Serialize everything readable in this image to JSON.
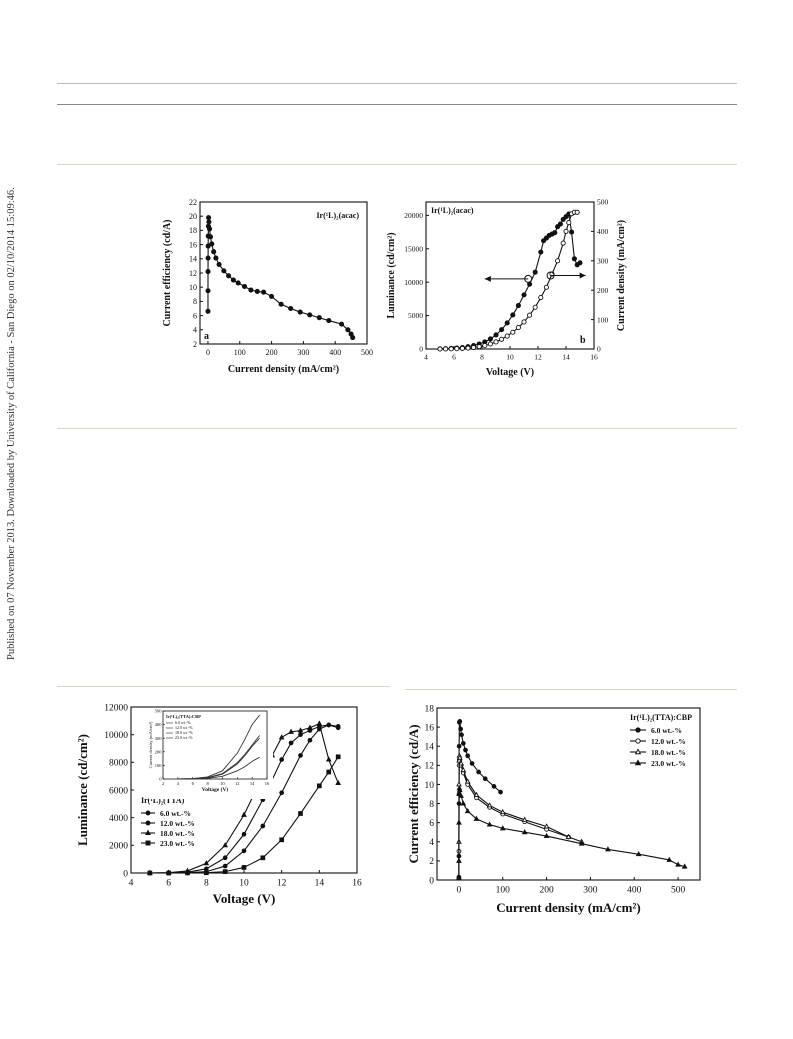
{
  "page": {
    "side_note": "Published on 07 November 2013. Downloaded by University of California - San Diego on 02/10/2014 15:09:46."
  },
  "chart_data": [
    {
      "id": "fig-a",
      "type": "line",
      "title": "",
      "annotation": "Ir(¹L)₂(acac)",
      "panel_label": "a",
      "xlabel": "Current density (mA/cm²)",
      "ylabel": "Current efficiency (cd/A)",
      "xlim": [
        -25,
        500
      ],
      "ylim": [
        2,
        22
      ],
      "xticks": [
        0,
        100,
        200,
        300,
        400,
        500
      ],
      "yticks": [
        2,
        4,
        6,
        8,
        10,
        12,
        14,
        16,
        18,
        20,
        22
      ],
      "series": [
        {
          "marker": "filled-circle",
          "x": [
            0.05,
            0.1,
            0.2,
            0.4,
            0.6,
            1,
            1.5,
            2,
            3,
            5,
            8,
            12,
            18,
            25,
            35,
            50,
            65,
            80,
            95,
            115,
            135,
            155,
            175,
            200,
            230,
            260,
            290,
            320,
            350,
            380,
            420,
            440,
            450,
            455
          ],
          "y": [
            6.6,
            9.5,
            12.2,
            14.1,
            15.8,
            17.2,
            18.6,
            19.8,
            19.2,
            18.2,
            17.1,
            16.1,
            15.0,
            14.1,
            13.2,
            12.3,
            11.6,
            11.0,
            10.6,
            10.1,
            9.6,
            9.4,
            9.3,
            8.7,
            7.6,
            7.0,
            6.5,
            6.1,
            5.7,
            5.3,
            4.8,
            4.0,
            3.4,
            2.9
          ]
        }
      ]
    },
    {
      "id": "fig-b",
      "type": "line",
      "title": "",
      "annotation": "Ir(¹L)₂(acac)",
      "panel_label": "b",
      "xlabel": "Voltage (V)",
      "ylabel": "Luminance (cd/cm²)",
      "ylabel_right": "Current density (mA/cm²)",
      "xlim": [
        4,
        16
      ],
      "ylim": [
        0,
        22000
      ],
      "ylim_right": [
        0,
        500
      ],
      "xticks": [
        4,
        6,
        8,
        10,
        12,
        14,
        16
      ],
      "yticks": [
        0,
        5000,
        10000,
        15000,
        20000
      ],
      "yticks_right": [
        0,
        100,
        200,
        300,
        400,
        500
      ],
      "series": [
        {
          "axis": "left",
          "marker": "filled-circle",
          "x": [
            5,
            5.4,
            5.8,
            6.2,
            6.6,
            7,
            7.4,
            7.8,
            8.2,
            8.6,
            9,
            9.4,
            9.8,
            10.2,
            10.6,
            11,
            11.4,
            11.8,
            12.2,
            12.4,
            12.6,
            12.8,
            13,
            13.2,
            13.4,
            13.6,
            13.8,
            14,
            14.2,
            14.4,
            14.6,
            14.8,
            15
          ],
          "y": [
            20,
            40,
            80,
            140,
            220,
            350,
            520,
            750,
            1050,
            1500,
            2100,
            2900,
            3900,
            5100,
            6500,
            8100,
            9700,
            11500,
            14500,
            16200,
            16600,
            17000,
            17200,
            17400,
            18300,
            18700,
            19400,
            19800,
            20200,
            17500,
            13500,
            12600,
            12900
          ]
        },
        {
          "axis": "right",
          "marker": "open-circle",
          "x": [
            5,
            5.4,
            5.8,
            6.2,
            6.6,
            7,
            7.4,
            7.8,
            8.2,
            8.6,
            9,
            9.4,
            9.8,
            10.2,
            10.6,
            11,
            11.4,
            11.8,
            12.2,
            12.6,
            13,
            13.4,
            13.8,
            14,
            14.2,
            14.4,
            14.6,
            14.8
          ],
          "y": [
            0.1,
            0.2,
            0.5,
            1,
            2,
            3,
            5,
            8,
            12,
            17,
            24,
            33,
            44,
            57,
            73,
            92,
            115,
            142,
            175,
            210,
            255,
            300,
            360,
            400,
            430,
            460,
            465,
            465
          ]
        }
      ]
    },
    {
      "id": "fig-c",
      "type": "line",
      "title": "",
      "xlabel": "Voltage (V)",
      "ylabel": "Luminance (cd/cm²)",
      "xlim": [
        4,
        16
      ],
      "ylim": [
        0,
        12000
      ],
      "xticks": [
        4,
        6,
        8,
        10,
        12,
        14,
        16
      ],
      "yticks": [
        0,
        2000,
        4000,
        6000,
        8000,
        10000,
        12000
      ],
      "legend_title": "Ir(¹L)₂(TTA)",
      "legend_position": "left-middle",
      "series": [
        {
          "name": "6.0 wt.-%",
          "marker": "filled-circle",
          "x": [
            5,
            6,
            7,
            8,
            9,
            10,
            11,
            12,
            12.5,
            13,
            13.5,
            14,
            14.5,
            15
          ],
          "y": [
            0,
            10,
            60,
            300,
            1100,
            2800,
            5300,
            8200,
            9400,
            10000,
            10300,
            10600,
            10700,
            10600
          ]
        },
        {
          "name": "12.0 wt.-%",
          "marker": "filled-circle",
          "x": [
            5,
            6,
            7,
            8,
            9,
            10,
            11,
            12,
            13,
            13.5,
            14,
            14.5,
            15
          ],
          "y": [
            0,
            5,
            20,
            100,
            500,
            1600,
            3400,
            5800,
            8500,
            9600,
            10400,
            10700,
            10500
          ]
        },
        {
          "name": "18.0 wt.-%",
          "marker": "filled-triangle",
          "x": [
            5,
            6,
            7,
            8,
            9,
            10,
            11,
            11.5,
            12,
            12.5,
            13,
            13.5,
            14,
            14.5,
            15
          ],
          "y": [
            0,
            20,
            150,
            700,
            2000,
            4200,
            7000,
            8500,
            9800,
            10200,
            10300,
            10500,
            10800,
            8200,
            6500
          ]
        },
        {
          "name": "23.0 wt.-%",
          "marker": "filled-square",
          "x": [
            5,
            6,
            7,
            8,
            9,
            10,
            11,
            12,
            13,
            14,
            14.5,
            15
          ],
          "y": [
            0,
            0,
            5,
            20,
            100,
            400,
            1100,
            2400,
            4300,
            6300,
            7300,
            8400
          ]
        }
      ]
    },
    {
      "id": "fig-c-inset",
      "type": "line",
      "title": "Ir(¹L)₂(TTA):CBP",
      "xlabel": "Voltage (V)",
      "ylabel": "Current density (mA/cm²)",
      "xlim": [
        2,
        16
      ],
      "ylim": [
        0,
        500
      ],
      "xticks": [
        2,
        4,
        6,
        8,
        10,
        12,
        14,
        16
      ],
      "yticks": [
        0,
        100,
        200,
        300,
        400,
        500
      ],
      "series": [
        {
          "name": "6.0 wt.-%",
          "x": [
            4,
            6,
            8,
            10,
            12,
            13,
            14,
            15
          ],
          "y": [
            0,
            2,
            10,
            40,
            120,
            180,
            250,
            320
          ]
        },
        {
          "name": "12.0 wt.-%",
          "x": [
            4,
            6,
            8,
            10,
            12,
            13,
            14,
            15
          ],
          "y": [
            0,
            2,
            8,
            35,
            110,
            170,
            240,
            300
          ]
        },
        {
          "name": "18.0 wt.-%",
          "x": [
            4,
            6,
            8,
            10,
            12,
            13,
            14,
            15
          ],
          "y": [
            0,
            3,
            15,
            60,
            190,
            290,
            400,
            470
          ]
        },
        {
          "name": "23.0 wt.-%",
          "x": [
            4,
            6,
            8,
            10,
            12,
            13,
            14,
            15
          ],
          "y": [
            0,
            1,
            5,
            20,
            60,
            90,
            130,
            160
          ]
        }
      ]
    },
    {
      "id": "fig-d",
      "type": "line",
      "title": "",
      "xlabel": "Current density (mA/cm²)",
      "ylabel": "Current efficiency (cd/A)",
      "xlim": [
        -50,
        550
      ],
      "ylim": [
        0,
        18
      ],
      "xticks": [
        0,
        100,
        200,
        300,
        400,
        500
      ],
      "yticks": [
        0,
        2,
        4,
        6,
        8,
        10,
        12,
        14,
        16,
        18
      ],
      "legend_title": "Ir(¹L)₂(TTA):CBP",
      "legend_position": "top-right",
      "series": [
        {
          "name": "6.0 wt.-%",
          "marker": "filled-circle",
          "x": [
            0.01,
            0.05,
            0.2,
            0.5,
            1,
            2,
            4,
            6,
            10,
            15,
            20,
            30,
            45,
            60,
            80,
            95
          ],
          "y": [
            0.3,
            2.5,
            8,
            14,
            16.5,
            16.6,
            15.8,
            15.2,
            14.3,
            13.6,
            13.0,
            12.2,
            11.3,
            10.6,
            9.8,
            9.2
          ]
        },
        {
          "name": "12.0 wt.-%",
          "marker": "open-circle",
          "x": [
            0.01,
            0.05,
            0.2,
            0.5,
            1,
            2,
            5,
            10,
            20,
            40,
            70,
            100,
            150,
            200,
            250
          ],
          "y": [
            0.2,
            3,
            9,
            12,
            12.6,
            12.5,
            12,
            11.2,
            10,
            8.6,
            7.6,
            6.9,
            6.1,
            5.3,
            4.5
          ]
        },
        {
          "name": "18.0 wt.-%",
          "marker": "open-triangle",
          "x": [
            0.01,
            0.05,
            0.2,
            0.5,
            1,
            2,
            5,
            10,
            20,
            40,
            70,
            100,
            150,
            200,
            250,
            280
          ],
          "y": [
            0.2,
            4,
            10,
            12.5,
            13,
            12.8,
            12.2,
            11.5,
            10.3,
            8.9,
            7.8,
            7.1,
            6.3,
            5.6,
            4.5,
            4.0
          ]
        },
        {
          "name": "23.0 wt.-%",
          "marker": "filled-triangle",
          "x": [
            0.01,
            0.05,
            0.2,
            0.5,
            1,
            2,
            5,
            10,
            20,
            40,
            70,
            100,
            150,
            200,
            280,
            340,
            410,
            480,
            500,
            515
          ],
          "y": [
            0.2,
            2,
            6,
            9,
            9.6,
            9.4,
            8.8,
            8.0,
            7.2,
            6.4,
            5.8,
            5.4,
            5.0,
            4.6,
            3.8,
            3.2,
            2.7,
            2.1,
            1.6,
            1.4
          ]
        }
      ]
    }
  ]
}
